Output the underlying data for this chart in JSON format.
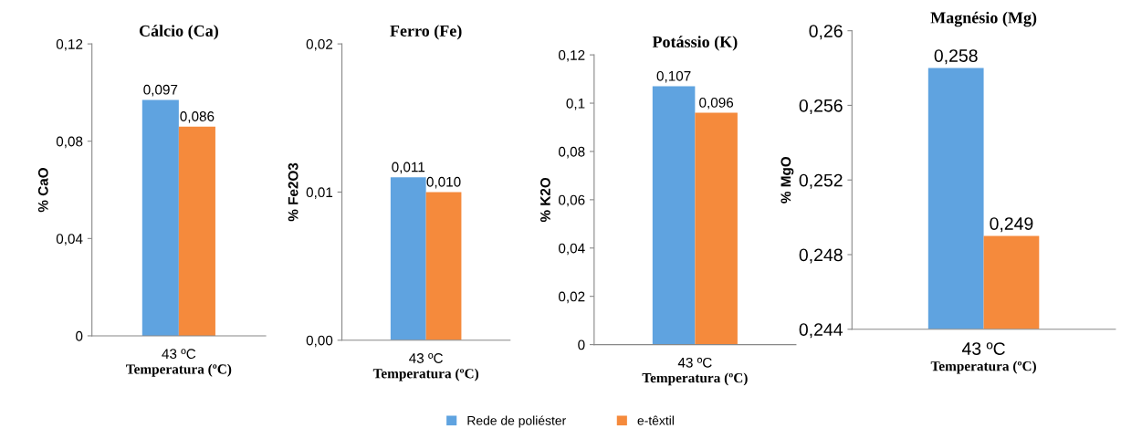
{
  "chart_data": [
    {
      "type": "bar",
      "title": "Cálcio (Ca)",
      "xlabel": "Temperatura (ºC)",
      "ylabel": "% CaO",
      "categories": [
        "43 ºC"
      ],
      "legend": "bottom",
      "series": [
        {
          "name": "Rede de poliéster",
          "color": "#5fa3e0",
          "values": [
            0.097
          ],
          "value_labels": [
            "0,097"
          ]
        },
        {
          "name": "e-têxtil",
          "color": "#f58a3c",
          "values": [
            0.086
          ],
          "value_labels": [
            "0,086"
          ]
        }
      ],
      "ylim": [
        0,
        0.12
      ],
      "yticks": [
        0,
        {
          "value": 0.04,
          "label": "0,04"
        },
        {
          "value": 0.08,
          "label": "0,08"
        },
        {
          "value": 0.12,
          "label": "0,12"
        }
      ]
    },
    {
      "type": "bar",
      "title": "Ferro (Fe)",
      "xlabel": "Temperatura (ºC)",
      "ylabel": "% Fe2O3",
      "categories": [
        "43 ºC"
      ],
      "series": [
        {
          "name": "Rede de poliéster",
          "color": "#5fa3e0",
          "values": [
            0.011
          ],
          "value_labels": [
            "0,011"
          ]
        },
        {
          "name": "e-têxtil",
          "color": "#f58a3c",
          "values": [
            0.01
          ],
          "value_labels": [
            "0,010"
          ]
        }
      ],
      "ylim": [
        0,
        0.02
      ],
      "yticks": [
        {
          "value": 0,
          "label": "0,00"
        },
        {
          "value": 0.01,
          "label": "0,01"
        },
        {
          "value": 0.02,
          "label": "0,02"
        }
      ]
    },
    {
      "type": "bar",
      "title": "Potássio (K)",
      "xlabel": "Temperatura (ºC)",
      "ylabel": "% K2O",
      "categories": [
        "43 ºC"
      ],
      "series": [
        {
          "name": "Rede de poliéster",
          "color": "#5fa3e0",
          "values": [
            0.107
          ],
          "value_labels": [
            "0,107"
          ]
        },
        {
          "name": "e-têxtil",
          "color": "#f58a3c",
          "values": [
            0.096
          ],
          "value_labels": [
            "0,096"
          ]
        }
      ],
      "ylim": [
        0,
        0.12
      ],
      "yticks": [
        0,
        {
          "value": 0.02,
          "label": "0,02"
        },
        {
          "value": 0.04,
          "label": "0,04"
        },
        {
          "value": 0.06,
          "label": "0,06"
        },
        {
          "value": 0.08,
          "label": "0,08"
        },
        {
          "value": 0.1,
          "label": "0,1"
        },
        {
          "value": 0.12,
          "label": "0,12"
        }
      ]
    },
    {
      "type": "bar",
      "title": "Magnésio (Mg)",
      "xlabel": "Temperatura (ºC)",
      "ylabel": "% MgO",
      "categories": [
        "43 ºC"
      ],
      "series": [
        {
          "name": "Rede de poliéster",
          "color": "#5fa3e0",
          "values": [
            0.258
          ],
          "value_labels": [
            "0,258"
          ]
        },
        {
          "name": "e-têxtil",
          "color": "#f58a3c",
          "values": [
            0.249
          ],
          "value_labels": [
            "0,249"
          ]
        }
      ],
      "ylim": [
        0.244,
        0.26
      ],
      "yticks": [
        {
          "value": 0.244,
          "label": "0,244"
        },
        {
          "value": 0.248,
          "label": "0,248"
        },
        {
          "value": 0.252,
          "label": "0,252"
        },
        {
          "value": 0.256,
          "label": "0,256"
        },
        {
          "value": 0.26,
          "label": "0,26"
        }
      ]
    }
  ]
}
